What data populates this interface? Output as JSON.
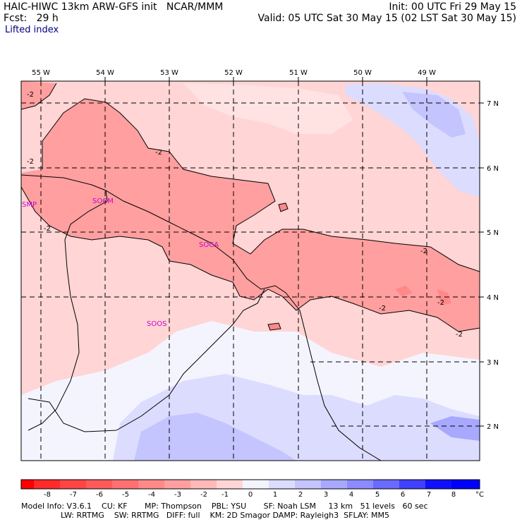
{
  "header": {
    "line1_left": "HAIC-HIWC 13km ARW-GFS init   NCAR/MMM",
    "line1_right": "Init: 00 UTC Fri 29 May 15",
    "line2_left": "Fcst:   29 h",
    "line2_right": "Valid: 05 UTC Sat 30 May 15 (02 LST Sat 30 May 15)",
    "field_name": "Lifted index"
  },
  "map": {
    "lon_labels": [
      "55 W",
      "54 W",
      "53 W",
      "52 W",
      "51 W",
      "50 W",
      "49 W"
    ],
    "lat_labels": [
      "7 N",
      "6 N",
      "5 N",
      "4 N",
      "3 N",
      "2 N"
    ],
    "stations": [
      "SMP",
      "SOCM",
      "SOCA",
      "SOOS"
    ],
    "contour_labels": [
      "-2",
      "-2",
      "-2",
      "-2",
      "-2",
      "-2",
      "-2",
      "-2"
    ]
  },
  "colorbar": {
    "tick_labels": [
      "-8",
      "-7",
      "-6",
      "-5",
      "-4",
      "-3",
      "-2",
      "-1",
      "0",
      "1",
      "2",
      "3",
      "4",
      "5",
      "6",
      "7",
      "8"
    ],
    "unit": "°C",
    "colors": [
      "#ff0000",
      "#ff2a2a",
      "#ff4444",
      "#ff5a5a",
      "#ff7070",
      "#ff8888",
      "#ff9f9f",
      "#ffb9b9",
      "#ffd5d5",
      "#f4f4ff",
      "#dcdcff",
      "#c4c4ff",
      "#a8a8ff",
      "#8c8cff",
      "#6a6aff",
      "#4040ff",
      "#1010ff"
    ]
  },
  "footer": {
    "line1": "Model Info: V3.6.1    CU: KF       MP: Thompson    PBL: YSU       SF: Noah LSM     13 km   51 levels   60 sec",
    "line2": "                LW: RRTMG    SW: RRTMG   DIFF: full    KM: 2D Smagor DAMP: Rayleigh3  SFLAY: MM5"
  }
}
